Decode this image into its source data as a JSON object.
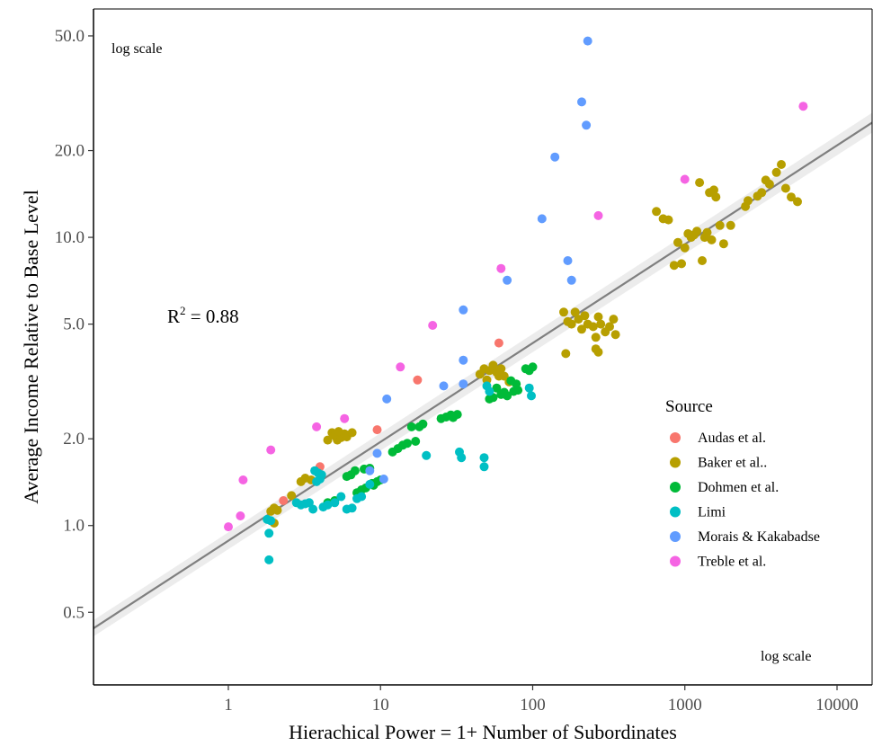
{
  "chart_data": {
    "type": "scatter",
    "xlabel": "Hierachical Power = 1+ Number of Subordinates",
    "ylabel": "Average Income Relative to Base Level",
    "x_scale": "log",
    "y_scale": "log",
    "xlim": [
      0.13,
      17000
    ],
    "ylim": [
      0.28,
      62
    ],
    "x_ticks": [
      1,
      10,
      100,
      1000,
      10000
    ],
    "x_tick_labels": [
      "1",
      "10",
      "100",
      "1000",
      "10000"
    ],
    "y_ticks": [
      0.5,
      1,
      2,
      5,
      10,
      20,
      50
    ],
    "y_tick_labels": [
      "0.5",
      "1.0",
      "2.0",
      "5.0",
      "10.0",
      "20.0",
      "50.0"
    ],
    "grid": false,
    "annotations": {
      "log_scale_y": "log scale",
      "log_scale_x": "log scale",
      "r_squared_prefix": "R",
      "r_squared_sup": "2",
      "r_squared_value": " = 0.88"
    },
    "fit_line": {
      "x": [
        0.13,
        17000
      ],
      "y": [
        0.44,
        25.0
      ],
      "color": "#7f7f7f"
    },
    "legend": {
      "title": "Source",
      "position": "right"
    },
    "series": [
      {
        "name": "Audas et al.",
        "color": "#F8766D",
        "points": [
          [
            2.3,
            1.22
          ],
          [
            4.0,
            1.6
          ],
          [
            9.5,
            2.15
          ],
          [
            17.5,
            3.2
          ],
          [
            60,
            4.3
          ]
        ]
      },
      {
        "name": "Baker et al..",
        "color": "#B79F00",
        "points": [
          [
            1.9,
            1.12
          ],
          [
            2.0,
            1.15
          ],
          [
            2.1,
            1.13
          ],
          [
            2.0,
            1.02
          ],
          [
            2.6,
            1.27
          ],
          [
            3.0,
            1.42
          ],
          [
            3.2,
            1.46
          ],
          [
            3.5,
            1.44
          ],
          [
            4.8,
            2.1
          ],
          [
            5.0,
            2.05
          ],
          [
            5.2,
            1.98
          ],
          [
            5.5,
            2.02
          ],
          [
            5.8,
            2.08
          ],
          [
            6.0,
            2.03
          ],
          [
            6.5,
            2.1
          ],
          [
            4.5,
            1.98
          ],
          [
            5.3,
            2.12
          ],
          [
            45,
            3.35
          ],
          [
            48,
            3.5
          ],
          [
            50,
            3.2
          ],
          [
            52,
            3.45
          ],
          [
            55,
            3.6
          ],
          [
            58,
            3.4
          ],
          [
            60,
            3.3
          ],
          [
            62,
            3.5
          ],
          [
            65,
            3.3
          ],
          [
            70,
            3.15
          ],
          [
            160,
            5.5
          ],
          [
            170,
            5.1
          ],
          [
            180,
            5.0
          ],
          [
            190,
            5.5
          ],
          [
            200,
            5.2
          ],
          [
            210,
            4.8
          ],
          [
            220,
            5.35
          ],
          [
            230,
            5.0
          ],
          [
            250,
            4.9
          ],
          [
            260,
            4.5
          ],
          [
            270,
            5.3
          ],
          [
            280,
            5.0
          ],
          [
            300,
            4.7
          ],
          [
            320,
            4.9
          ],
          [
            340,
            5.2
          ],
          [
            350,
            4.6
          ],
          [
            260,
            4.1
          ],
          [
            270,
            4.0
          ],
          [
            165,
            3.95
          ],
          [
            650,
            12.3
          ],
          [
            720,
            11.6
          ],
          [
            780,
            11.5
          ],
          [
            850,
            8.0
          ],
          [
            900,
            9.6
          ],
          [
            950,
            8.1
          ],
          [
            1000,
            9.2
          ],
          [
            1050,
            10.3
          ],
          [
            1100,
            10.0
          ],
          [
            1150,
            10.2
          ],
          [
            1200,
            10.5
          ],
          [
            1250,
            15.5
          ],
          [
            1300,
            8.3
          ],
          [
            1350,
            10.0
          ],
          [
            1400,
            10.4
          ],
          [
            1450,
            14.3
          ],
          [
            1500,
            9.8
          ],
          [
            1550,
            14.6
          ],
          [
            1600,
            13.8
          ],
          [
            1700,
            11.0
          ],
          [
            1800,
            9.5
          ],
          [
            2000,
            11.0
          ],
          [
            2500,
            12.8
          ],
          [
            2600,
            13.4
          ],
          [
            3000,
            13.9
          ],
          [
            3200,
            14.3
          ],
          [
            3400,
            15.8
          ],
          [
            3600,
            15.3
          ],
          [
            4000,
            16.8
          ],
          [
            4300,
            17.9
          ],
          [
            4600,
            14.8
          ],
          [
            5000,
            13.8
          ],
          [
            5500,
            13.3
          ]
        ]
      },
      {
        "name": "Dohmen et al.",
        "color": "#00BA38",
        "points": [
          [
            4.5,
            1.2
          ],
          [
            5.0,
            1.22
          ],
          [
            6.0,
            1.48
          ],
          [
            6.4,
            1.5
          ],
          [
            6.8,
            1.55
          ],
          [
            7.0,
            1.3
          ],
          [
            7.5,
            1.33
          ],
          [
            7.8,
            1.57
          ],
          [
            8.0,
            1.35
          ],
          [
            8.5,
            1.58
          ],
          [
            8.8,
            1.4
          ],
          [
            9.0,
            1.38
          ],
          [
            9.5,
            1.42
          ],
          [
            10.0,
            1.44
          ],
          [
            12,
            1.8
          ],
          [
            13,
            1.85
          ],
          [
            14,
            1.9
          ],
          [
            15,
            1.93
          ],
          [
            16,
            2.2
          ],
          [
            17,
            1.96
          ],
          [
            18,
            2.2
          ],
          [
            19,
            2.25
          ],
          [
            25,
            2.35
          ],
          [
            27,
            2.38
          ],
          [
            29,
            2.42
          ],
          [
            30,
            2.37
          ],
          [
            32,
            2.43
          ],
          [
            52,
            2.75
          ],
          [
            55,
            2.78
          ],
          [
            58,
            3.0
          ],
          [
            62,
            2.85
          ],
          [
            65,
            2.9
          ],
          [
            68,
            2.82
          ],
          [
            72,
            3.18
          ],
          [
            75,
            2.92
          ],
          [
            78,
            3.1
          ],
          [
            80,
            2.95
          ],
          [
            90,
            3.5
          ],
          [
            95,
            3.45
          ],
          [
            100,
            3.55
          ]
        ]
      },
      {
        "name": "Limi",
        "color": "#00BFC4",
        "points": [
          [
            1.8,
            1.05
          ],
          [
            1.85,
            0.94
          ],
          [
            1.85,
            0.76
          ],
          [
            1.9,
            1.04
          ],
          [
            2.8,
            1.2
          ],
          [
            3.0,
            1.18
          ],
          [
            3.2,
            1.19
          ],
          [
            3.4,
            1.2
          ],
          [
            3.6,
            1.14
          ],
          [
            3.8,
            1.42
          ],
          [
            3.9,
            1.52
          ],
          [
            4.0,
            1.45
          ],
          [
            3.7,
            1.55
          ],
          [
            4.1,
            1.5
          ],
          [
            4.2,
            1.16
          ],
          [
            4.5,
            1.18
          ],
          [
            5.0,
            1.2
          ],
          [
            5.5,
            1.26
          ],
          [
            6.0,
            1.14
          ],
          [
            6.5,
            1.15
          ],
          [
            7.0,
            1.24
          ],
          [
            7.5,
            1.26
          ],
          [
            8.5,
            1.39
          ],
          [
            20,
            1.75
          ],
          [
            33,
            1.8
          ],
          [
            34,
            1.72
          ],
          [
            48,
            1.72
          ],
          [
            48,
            1.6
          ],
          [
            50,
            3.05
          ],
          [
            52,
            2.92
          ],
          [
            95,
            3.0
          ],
          [
            98,
            2.82
          ]
        ]
      },
      {
        "name": "Morais & Kakabadse",
        "color": "#619CFF",
        "points": [
          [
            9.5,
            1.78
          ],
          [
            8.5,
            1.55
          ],
          [
            10.5,
            1.45
          ],
          [
            11,
            2.75
          ],
          [
            26,
            3.05
          ],
          [
            35,
            3.1
          ],
          [
            35,
            3.75
          ],
          [
            35,
            5.6
          ],
          [
            68,
            7.1
          ],
          [
            115,
            11.6
          ],
          [
            140,
            19.0
          ],
          [
            170,
            8.3
          ],
          [
            180,
            7.1
          ],
          [
            210,
            29.5
          ],
          [
            225,
            24.5
          ],
          [
            230,
            48.0
          ]
        ]
      },
      {
        "name": "Treble et al.",
        "color": "#F564E3",
        "points": [
          [
            1.0,
            0.99
          ],
          [
            1.2,
            1.08
          ],
          [
            1.25,
            1.44
          ],
          [
            1.9,
            1.83
          ],
          [
            3.8,
            2.2
          ],
          [
            5.8,
            2.35
          ],
          [
            13.5,
            3.55
          ],
          [
            22,
            4.95
          ],
          [
            62,
            7.8
          ],
          [
            270,
            11.9
          ],
          [
            1000,
            15.9
          ],
          [
            6000,
            28.5
          ]
        ]
      }
    ]
  }
}
